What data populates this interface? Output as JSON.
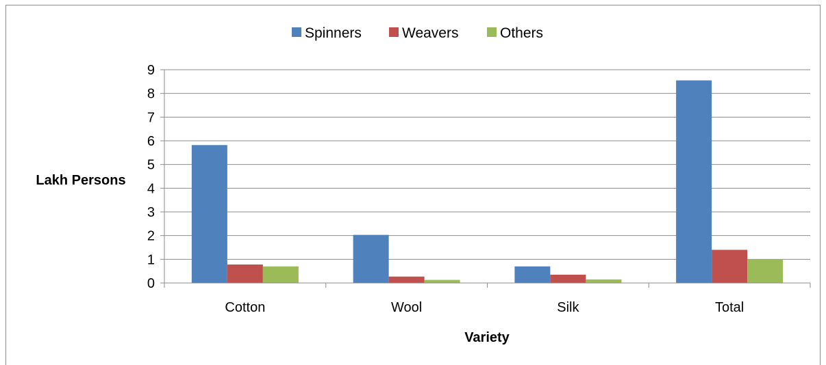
{
  "chart_data": {
    "type": "bar",
    "categories": [
      "Cotton",
      "Wool",
      "Silk",
      "Total"
    ],
    "series": [
      {
        "name": "Spinners",
        "values": [
          5.82,
          2.03,
          0.7,
          8.55
        ],
        "color": "#4f81bd"
      },
      {
        "name": "Weavers",
        "values": [
          0.78,
          0.27,
          0.35,
          1.4
        ],
        "color": "#c0504d"
      },
      {
        "name": "Others",
        "values": [
          0.7,
          0.13,
          0.15,
          1.0
        ],
        "color": "#9bbb59"
      }
    ],
    "xlabel": "Variety",
    "ylabel": "Lakh Persons",
    "ylim": [
      0,
      9
    ],
    "yticks": [
      "0",
      "1",
      "2",
      "3",
      "4",
      "5",
      "6",
      "7",
      "8",
      "9"
    ],
    "grid": true,
    "legend_position": "top"
  }
}
